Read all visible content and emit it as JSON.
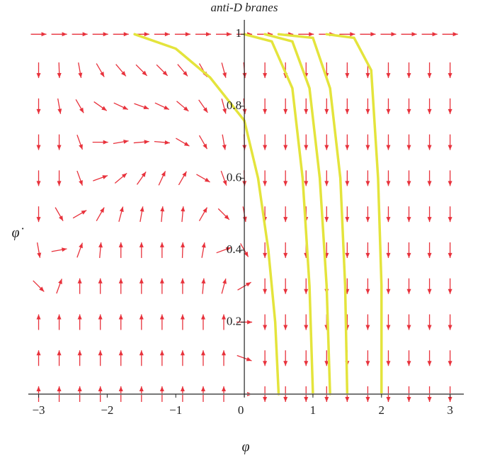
{
  "chart_data": {
    "type": "quiver",
    "title": "anti-D branes",
    "xlabel": "φ",
    "ylabel": "φ̇",
    "xlim": [
      -3.15,
      3.2
    ],
    "ylim": [
      0,
      1.04
    ],
    "xticks": [
      {
        "value": -3,
        "label": "−3"
      },
      {
        "value": -2,
        "label": "−2"
      },
      {
        "value": -1,
        "label": "−1"
      },
      0,
      1,
      2,
      3
    ],
    "yticks": [
      0.2,
      0.4,
      0.6,
      0.8,
      1
    ],
    "arrow_color": "#e8323c",
    "x_grid": [
      -3,
      -2.7,
      -2.4,
      -2.1,
      -1.8,
      -1.5,
      -1.2,
      -0.9,
      -0.6,
      -0.3,
      0,
      0.3,
      0.6,
      0.9,
      1.2,
      1.5,
      1.8,
      2.1,
      2.4,
      2.7,
      3
    ],
    "y_grid": [
      0,
      0.1,
      0.2,
      0.3,
      0.4,
      0.5,
      0.6,
      0.7,
      0.8,
      0.9,
      1
    ],
    "angles": [
      [
        90,
        90,
        90,
        90,
        90,
        90,
        90,
        90,
        90,
        90,
        0,
        -90,
        -90,
        -90,
        -90,
        -90,
        -90,
        -90,
        -90,
        -90,
        -90
      ],
      [
        90,
        90,
        90,
        90,
        90,
        90,
        90,
        90,
        90,
        90,
        -20,
        -90,
        -90,
        -90,
        -90,
        -90,
        -90,
        -90,
        -90,
        -90,
        -90
      ],
      [
        90,
        90,
        90,
        90,
        90,
        90,
        90,
        90,
        90,
        90,
        0,
        -90,
        -90,
        -90,
        -90,
        -90,
        -90,
        -90,
        -90,
        -90,
        -90
      ],
      [
        -45,
        70,
        90,
        90,
        90,
        90,
        90,
        90,
        85,
        75,
        30,
        -90,
        -90,
        -90,
        -90,
        -90,
        -90,
        -90,
        -90,
        -90,
        -90
      ],
      [
        -80,
        10,
        70,
        85,
        90,
        90,
        90,
        88,
        80,
        20,
        -60,
        -90,
        -90,
        -90,
        -90,
        -90,
        -90,
        -90,
        -90,
        -90,
        -90
      ],
      [
        -90,
        -60,
        30,
        60,
        75,
        80,
        85,
        85,
        60,
        -45,
        -80,
        -90,
        -90,
        -90,
        -90,
        -90,
        -90,
        -90,
        -90,
        -90,
        -90
      ],
      [
        -90,
        -90,
        -70,
        20,
        40,
        55,
        65,
        60,
        -30,
        -70,
        -88,
        -90,
        -90,
        -90,
        -90,
        -90,
        -90,
        -90,
        -90,
        -90,
        -90
      ],
      [
        -90,
        -90,
        -70,
        0,
        10,
        5,
        -5,
        -30,
        -60,
        -80,
        -88,
        -90,
        -90,
        -90,
        -90,
        -90,
        -90,
        -90,
        -90,
        -90,
        -90
      ],
      [
        -90,
        -80,
        -60,
        -35,
        -25,
        -20,
        -25,
        -40,
        -55,
        -75,
        -85,
        -90,
        -90,
        -90,
        -90,
        -90,
        -90,
        -90,
        -90,
        -90,
        -90
      ],
      [
        -90,
        -88,
        -80,
        -60,
        -50,
        -45,
        -45,
        -50,
        -60,
        -75,
        -85,
        -90,
        -90,
        -90,
        -90,
        -90,
        -90,
        -90,
        -90,
        -90,
        -90
      ],
      [
        0,
        0,
        0,
        0,
        0,
        0,
        0,
        0,
        0,
        0,
        0,
        0,
        0,
        0,
        0,
        0,
        0,
        0,
        0,
        0,
        0
      ]
    ],
    "series": [
      {
        "color": "#e4e43c",
        "x": [
          -1.6,
          -1,
          -0.5,
          0,
          0.2,
          0.35,
          0.45,
          0.5
        ],
        "y": [
          1,
          0.96,
          0.88,
          0.76,
          0.6,
          0.4,
          0.2,
          0
        ]
      },
      {
        "color": "#e4e43c",
        "x": [
          0,
          0.4,
          0.7,
          0.85,
          0.95,
          1
        ],
        "y": [
          1,
          0.98,
          0.85,
          0.6,
          0.3,
          0
        ]
      },
      {
        "color": "#e4e43c",
        "x": [
          0.3,
          0.7,
          0.95,
          1.1,
          1.2,
          1.25
        ],
        "y": [
          1,
          0.98,
          0.85,
          0.6,
          0.3,
          0
        ]
      },
      {
        "color": "#e4e43c",
        "x": [
          0.5,
          1,
          1.25,
          1.4,
          1.47,
          1.5
        ],
        "y": [
          1,
          0.99,
          0.85,
          0.6,
          0.3,
          0
        ]
      },
      {
        "color": "#e4e43c",
        "x": [
          1.2,
          1.6,
          1.85,
          1.95,
          2,
          2
        ],
        "y": [
          1,
          0.99,
          0.9,
          0.6,
          0.3,
          0
        ]
      }
    ]
  }
}
